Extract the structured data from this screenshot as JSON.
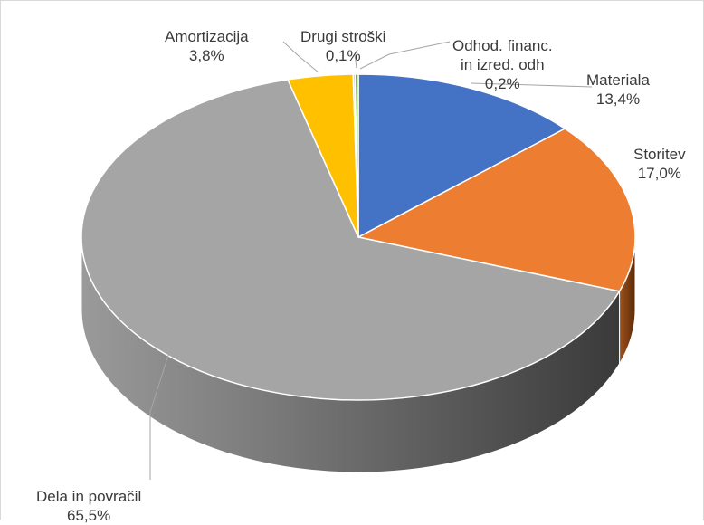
{
  "chart_data": {
    "type": "pie",
    "style": "3d",
    "categories": [
      "Materiala",
      "Storitev",
      "Dela in povračil",
      "Amortizacija",
      "Drugi stroški",
      "Odhod. financ. in izred. odh"
    ],
    "values": [
      13.4,
      17.0,
      65.5,
      3.8,
      0.1,
      0.2
    ],
    "labels": [
      {
        "name": "Materiala",
        "value_label": "13,4%"
      },
      {
        "name": "Storitev",
        "value_label": "17,0%"
      },
      {
        "name": "Dela in povračil",
        "value_label": "65,5%"
      },
      {
        "name": "Amortizacija",
        "value_label": "3,8%"
      },
      {
        "name": "Drugi stroški",
        "value_label": "0,1%"
      },
      {
        "name_lines": [
          "Odhod. financ.",
          "in izred. odh"
        ],
        "value_label": "0,2%"
      }
    ],
    "colors": [
      "#4472C4",
      "#ED7D31",
      "#A5A5A5",
      "#FFC000",
      "#5B9BD5",
      "#70AD47"
    ],
    "side_colors": [
      "#2F528F",
      "#8B4513",
      "#606060",
      "#BF9000",
      "#41719C",
      "#507E32"
    ],
    "legend": "none",
    "title": ""
  }
}
